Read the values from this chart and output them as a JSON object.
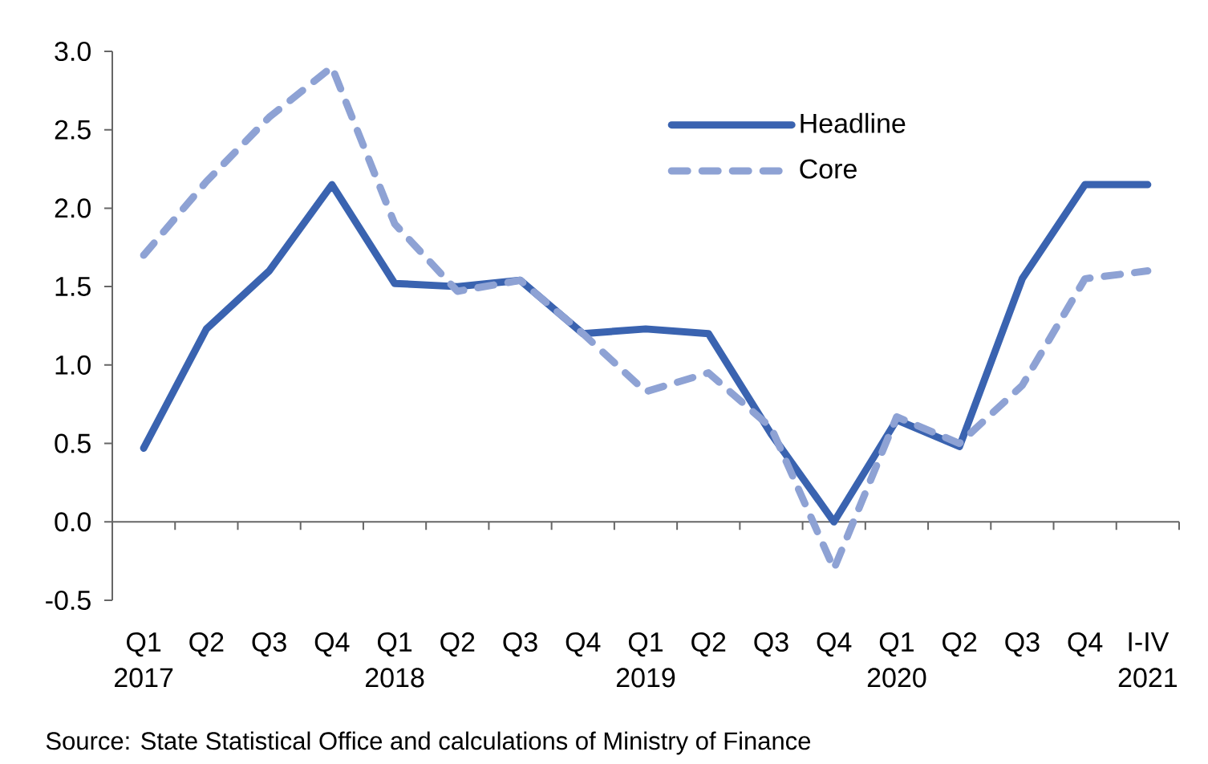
{
  "chart_data": {
    "type": "line",
    "categories": [
      "Q1",
      "Q2",
      "Q3",
      "Q4",
      "Q1",
      "Q2",
      "Q3",
      "Q4",
      "Q1",
      "Q2",
      "Q3",
      "Q4",
      "Q1",
      "Q2",
      "Q3",
      "Q4",
      "I-IV"
    ],
    "series": [
      {
        "name": "Headline",
        "color": "#3a63b0",
        "line_style": "solid",
        "values": [
          0.47,
          1.23,
          1.6,
          2.15,
          1.52,
          1.5,
          1.54,
          1.2,
          1.23,
          1.2,
          0.56,
          0.0,
          0.65,
          0.48,
          1.55,
          2.15,
          2.15
        ]
      },
      {
        "name": "Core",
        "color": "#8ea2d4",
        "line_style": "dashed",
        "values": [
          1.7,
          2.17,
          2.58,
          2.9,
          1.9,
          1.47,
          1.54,
          1.2,
          0.83,
          0.95,
          0.6,
          -0.3,
          0.67,
          0.5,
          0.87,
          1.55,
          1.6
        ]
      }
    ],
    "ylim": [
      -0.5,
      3.0
    ],
    "yticks": [
      {
        "value": -0.5,
        "label": "-0.5"
      },
      {
        "value": 0,
        "label": "0.0"
      },
      {
        "value": 0.5,
        "label": "0.5"
      },
      {
        "value": 1,
        "label": "1.0"
      },
      {
        "value": 1.5,
        "label": "1.5"
      },
      {
        "value": 2,
        "label": "2.0"
      },
      {
        "value": 2.5,
        "label": "2.5"
      },
      {
        "value": 3,
        "label": "3.0"
      }
    ],
    "legend": "top",
    "marker": "none",
    "annotations": [
      "2017",
      "2018",
      "2019",
      "2020",
      "2021",
      "Source: State Statistical Office and calculations of Ministry of Finance"
    ]
  }
}
